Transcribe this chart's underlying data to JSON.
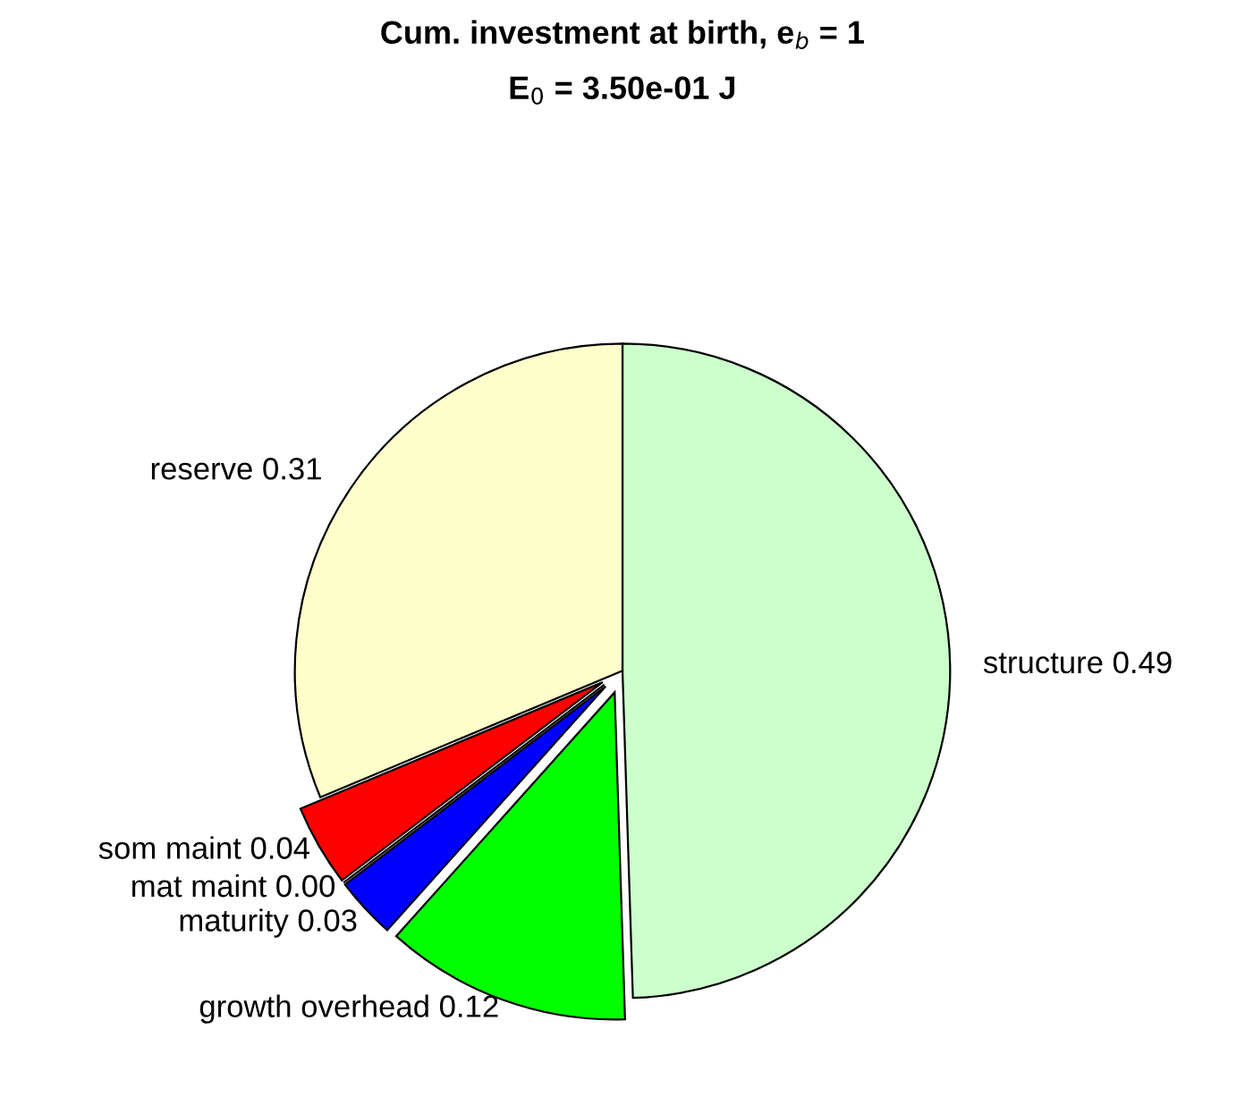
{
  "chart_data": {
    "type": "pie",
    "title": "Cum. investment at birth, e$_{b}$ = 1",
    "subtitle": "E$_{0}$ = 3.50e-01 J",
    "categories": [
      "structure",
      "growth overhead",
      "maturity",
      "mat maint",
      "som maint",
      "reserve"
    ],
    "values": [
      0.49,
      0.12,
      0.03,
      0.0,
      0.04,
      0.31
    ],
    "value_labels": [
      "0.49",
      "0.12",
      "0.03",
      "0.00",
      "0.04",
      "0.31"
    ],
    "colors": [
      "#ccffcc",
      "#00ff00",
      "#0000ff",
      "#ff00ff",
      "#ff0000",
      "#ffffcc"
    ]
  }
}
